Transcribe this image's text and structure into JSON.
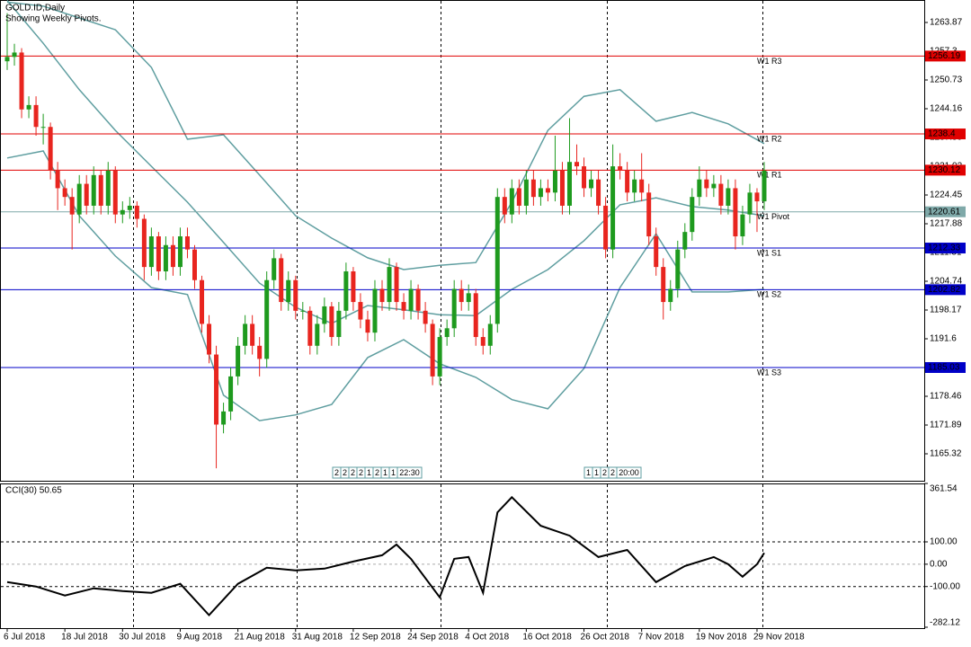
{
  "chart_data": [
    {
      "type": "candlestick",
      "title": "GOLD.ID,Daily",
      "subtitle": "Showing Weekly Pivots.",
      "categories": [
        "6 Jul 2018",
        null,
        null,
        null,
        null,
        null,
        null,
        null,
        "18 Jul 2018",
        null,
        null,
        null,
        null,
        null,
        null,
        null,
        "30 Jul 2018",
        null,
        null,
        null,
        null,
        null,
        null,
        null,
        "9 Aug 2018",
        null,
        null,
        null,
        null,
        null,
        null,
        null,
        "21 Aug 2018",
        null,
        null,
        null,
        null,
        null,
        null,
        null,
        "31 Aug 2018",
        null,
        null,
        null,
        null,
        null,
        null,
        null,
        "12 Sep 2018",
        null,
        null,
        null,
        null,
        null,
        null,
        null,
        "24 Sep 2018",
        null,
        null,
        null,
        null,
        null,
        null,
        null,
        "4 Oct 2018",
        null,
        null,
        null,
        null,
        null,
        null,
        null,
        "16 Oct 2018",
        null,
        null,
        null,
        null,
        null,
        null,
        null,
        "26 Oct 2018",
        null,
        null,
        null,
        null,
        null,
        null,
        null,
        "7 Nov 2018",
        null,
        null,
        null,
        null,
        null,
        null,
        null,
        "19 Nov 2018",
        null,
        null,
        null,
        null,
        null,
        null,
        null,
        "29 Nov 2018",
        null
      ],
      "candles": [
        [
          1255,
          1266,
          1253,
          1256
        ],
        [
          1256,
          1259,
          1254,
          1257
        ],
        [
          1257,
          1258,
          1242,
          1244
        ],
        [
          1244,
          1247,
          1242,
          1245
        ],
        [
          1245,
          1247,
          1238,
          1240
        ],
        [
          1240,
          1243,
          1236,
          1240
        ],
        [
          1240,
          1241,
          1228,
          1230
        ],
        [
          1230,
          1232,
          1221,
          1226
        ],
        [
          1226,
          1228,
          1222,
          1224
        ],
        [
          1224,
          1226,
          1212,
          1220
        ],
        [
          1220,
          1229,
          1218,
          1227
        ],
        [
          1227,
          1229,
          1220,
          1222
        ],
        [
          1222,
          1231,
          1220,
          1229
        ],
        [
          1229,
          1230,
          1220,
          1222
        ],
        [
          1222,
          1232,
          1220,
          1230
        ],
        [
          1230,
          1231,
          1218,
          1220
        ],
        [
          1220,
          1223,
          1218,
          1221
        ],
        [
          1221,
          1224,
          1219,
          1222
        ],
        [
          1222,
          1223,
          1217,
          1219
        ],
        [
          1219,
          1220,
          1205,
          1208
        ],
        [
          1208,
          1217,
          1206,
          1215
        ],
        [
          1215,
          1216,
          1205,
          1207
        ],
        [
          1207,
          1215,
          1205,
          1213
        ],
        [
          1213,
          1215,
          1206,
          1208
        ],
        [
          1208,
          1217,
          1206,
          1215
        ],
        [
          1215,
          1217,
          1210,
          1212
        ],
        [
          1212,
          1213,
          1203,
          1205
        ],
        [
          1205,
          1206,
          1193,
          1195
        ],
        [
          1195,
          1197,
          1186,
          1188
        ],
        [
          1188,
          1190,
          1162,
          1172
        ],
        [
          1172,
          1177,
          1170,
          1175
        ],
        [
          1175,
          1185,
          1173,
          1183
        ],
        [
          1183,
          1192,
          1181,
          1190
        ],
        [
          1190,
          1197,
          1188,
          1195
        ],
        [
          1195,
          1197,
          1188,
          1190
        ],
        [
          1190,
          1192,
          1183,
          1187
        ],
        [
          1187,
          1207,
          1185,
          1205
        ],
        [
          1205,
          1212,
          1203,
          1210
        ],
        [
          1210,
          1211,
          1198,
          1200
        ],
        [
          1200,
          1207,
          1198,
          1205
        ],
        [
          1205,
          1206,
          1196,
          1198
        ],
        [
          1198,
          1200,
          1196,
          1198
        ],
        [
          1198,
          1199,
          1188,
          1190
        ],
        [
          1190,
          1197,
          1188,
          1195
        ],
        [
          1195,
          1201,
          1193,
          1199
        ],
        [
          1199,
          1200,
          1190,
          1192
        ],
        [
          1192,
          1200,
          1190,
          1198
        ],
        [
          1198,
          1209,
          1196,
          1207
        ],
        [
          1207,
          1208,
          1198,
          1200
        ],
        [
          1200,
          1202,
          1194,
          1196
        ],
        [
          1196,
          1198,
          1191,
          1193
        ],
        [
          1193,
          1205,
          1191,
          1203
        ],
        [
          1203,
          1205,
          1198,
          1200
        ],
        [
          1200,
          1210,
          1198,
          1208
        ],
        [
          1208,
          1209,
          1198,
          1200
        ],
        [
          1200,
          1202,
          1196,
          1198
        ],
        [
          1198,
          1205,
          1196,
          1203
        ],
        [
          1203,
          1204,
          1196,
          1198
        ],
        [
          1198,
          1200,
          1193,
          1195
        ],
        [
          1195,
          1196,
          1181,
          1183
        ],
        [
          1183,
          1194,
          1181,
          1192
        ],
        [
          1192,
          1196,
          1190,
          1194
        ],
        [
          1194,
          1205,
          1192,
          1203
        ],
        [
          1203,
          1205,
          1198,
          1200
        ],
        [
          1200,
          1204,
          1198,
          1202
        ],
        [
          1202,
          1203,
          1190,
          1192
        ],
        [
          1192,
          1194,
          1188,
          1190
        ],
        [
          1190,
          1197,
          1188,
          1195
        ],
        [
          1195,
          1226,
          1193,
          1224
        ],
        [
          1224,
          1226,
          1218,
          1220
        ],
        [
          1220,
          1228,
          1218,
          1226
        ],
        [
          1226,
          1228,
          1220,
          1222
        ],
        [
          1222,
          1230,
          1220,
          1228
        ],
        [
          1228,
          1230,
          1222,
          1224
        ],
        [
          1224,
          1228,
          1222,
          1226
        ],
        [
          1226,
          1228,
          1223,
          1225
        ],
        [
          1225,
          1238,
          1223,
          1230
        ],
        [
          1230,
          1232,
          1220,
          1222
        ],
        [
          1222,
          1242,
          1220,
          1232
        ],
        [
          1232,
          1236,
          1229,
          1231
        ],
        [
          1231,
          1233,
          1224,
          1226
        ],
        [
          1226,
          1230,
          1224,
          1228
        ],
        [
          1228,
          1230,
          1220,
          1222
        ],
        [
          1222,
          1224,
          1210,
          1212
        ],
        [
          1212,
          1236,
          1210,
          1231
        ],
        [
          1231,
          1234,
          1228,
          1230
        ],
        [
          1230,
          1232,
          1223,
          1225
        ],
        [
          1225,
          1230,
          1223,
          1228
        ],
        [
          1228,
          1234,
          1223,
          1225
        ],
        [
          1225,
          1227,
          1213,
          1215
        ],
        [
          1215,
          1217,
          1206,
          1208
        ],
        [
          1208,
          1210,
          1196,
          1200
        ],
        [
          1200,
          1205,
          1198,
          1203
        ],
        [
          1203,
          1214,
          1201,
          1212
        ],
        [
          1212,
          1218,
          1210,
          1216
        ],
        [
          1216,
          1226,
          1214,
          1224
        ],
        [
          1224,
          1231,
          1222,
          1228
        ],
        [
          1228,
          1230,
          1224,
          1226
        ],
        [
          1226,
          1229,
          1224,
          1227
        ],
        [
          1227,
          1229,
          1220,
          1222
        ],
        [
          1222,
          1228,
          1220,
          1226
        ],
        [
          1226,
          1228,
          1212,
          1215
        ],
        [
          1215,
          1222,
          1213,
          1220
        ],
        [
          1220,
          1227,
          1218,
          1225
        ],
        [
          1225,
          1226,
          1216,
          1223
        ],
        [
          1223,
          1232,
          1221,
          1230
        ]
      ],
      "up_color": "#1e9a1e",
      "down_color": "#e8251f",
      "ylim": [
        1159.16,
        1269.0
      ],
      "yticks": [
        1165.32,
        1171.89,
        1178.46,
        1185.03,
        1191.6,
        1198.17,
        1204.74,
        1211.31,
        1217.88,
        1224.45,
        1231.02,
        1237.59,
        1244.16,
        1250.73,
        1257.3,
        1263.87
      ],
      "bands": [
        {
          "color": "#5f9ea0",
          "x": [
            0,
            5,
            10,
            15,
            20,
            25,
            30,
            35,
            40,
            45,
            50,
            55,
            60,
            65,
            70,
            75,
            80,
            85,
            90,
            95,
            100,
            105
          ],
          "values": [
            1268.5,
            1267.6,
            1264.9,
            1262.2,
            1253.6,
            1237.2,
            1238.2,
            1229.0,
            1219.7,
            1214.6,
            1210.1,
            1207.4,
            1208.4,
            1209.0,
            1222.8,
            1239.2,
            1247.0,
            1248.5,
            1241.3,
            1243.3,
            1240.7,
            1236.2
          ]
        },
        {
          "color": "#5f9ea0",
          "x": [
            0,
            5,
            10,
            15,
            20,
            25,
            30,
            35,
            40,
            45,
            50,
            55,
            60,
            65,
            70,
            75,
            80,
            85,
            90,
            95,
            100,
            105
          ],
          "values": [
            1268.9,
            1259.1,
            1248.5,
            1239.2,
            1231.0,
            1222.8,
            1213.6,
            1204.3,
            1198.8,
            1195.1,
            1199.2,
            1198.2,
            1197.1,
            1196.9,
            1202.9,
            1207.4,
            1214.0,
            1222.2,
            1223.8,
            1221.8,
            1221.0,
            1219.7
          ]
        },
        {
          "color": "#5f9ea0",
          "x": [
            0,
            5,
            10,
            15,
            20,
            25,
            30,
            35,
            40,
            45,
            50,
            55,
            60,
            65,
            70,
            75,
            80,
            85,
            90,
            95,
            100,
            105
          ],
          "values": [
            1232.9,
            1234.5,
            1219.7,
            1210.5,
            1203.3,
            1201.7,
            1178.7,
            1172.9,
            1174.2,
            1176.6,
            1187.3,
            1191.4,
            1185.9,
            1182.8,
            1177.7,
            1175.6,
            1184.8,
            1203.3,
            1215.6,
            1202.3,
            1202.3,
            1202.9
          ]
        }
      ],
      "pivots": [
        {
          "name": "W1 R3",
          "value": 1256.19,
          "color": "#e00000"
        },
        {
          "name": "W1 R2",
          "value": 1238.4,
          "color": "#e00000"
        },
        {
          "name": "W1 R1",
          "value": 1230.12,
          "color": "#e00000"
        },
        {
          "name": "W1 Pivot",
          "value": 1220.61,
          "color": "#7fa9a9"
        },
        {
          "name": "W1 S1",
          "value": 1212.33,
          "color": "#0000c8"
        },
        {
          "name": "W1 S2",
          "value": 1202.82,
          "color": "#0000c8"
        },
        {
          "name": "W1 S3",
          "value": 1185.03,
          "color": "#0000c8"
        }
      ],
      "annotations": [
        [
          "2",
          "2",
          "2",
          "2",
          "1",
          "2",
          "1",
          "1",
          "22:30"
        ],
        [
          "1",
          "1",
          "2",
          "2",
          "20:00"
        ]
      ]
    },
    {
      "type": "line",
      "title": "CCI(30) 50.65",
      "color": "#000000",
      "x": [
        0,
        4,
        8,
        12,
        16,
        20,
        24,
        28,
        32,
        36,
        40,
        44,
        48,
        52,
        54,
        56,
        60,
        62,
        64,
        66,
        68,
        70,
        74,
        78,
        82,
        86,
        90,
        94,
        98,
        100,
        102,
        104,
        105
      ],
      "values": [
        -80,
        -100,
        -140,
        -108,
        -120,
        -128,
        -88,
        -228,
        -88,
        -16,
        -28,
        -20,
        12,
        40,
        88,
        24,
        -148,
        24,
        32,
        -128,
        232,
        300,
        172,
        128,
        32,
        64,
        -80,
        -8,
        32,
        0,
        -56,
        0,
        50.65
      ],
      "ylim": [
        -282.12,
        361.54
      ],
      "yticks": [
        -282.12,
        {
          "value": -100,
          "label": "-100.00"
        },
        {
          "value": 0,
          "label": "0.00"
        },
        {
          "value": 100,
          "label": "100.00"
        },
        361.54
      ]
    }
  ]
}
